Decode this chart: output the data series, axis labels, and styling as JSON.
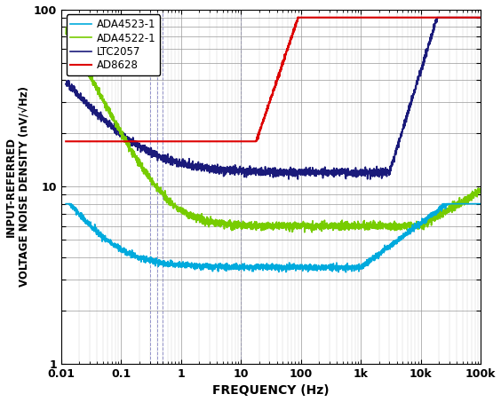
{
  "xlabel": "FREQUENCY (Hz)",
  "ylabel": "INPUT-REFERRED\nVOLTAGE NOISE DENSITY (nV/√Hz)",
  "xlim": [
    0.01,
    100000
  ],
  "ylim": [
    1,
    100
  ],
  "legend": [
    "ADA4523-1",
    "ADA4522-1",
    "LTC2057",
    "AD8628"
  ],
  "colors": {
    "ADA4523-1": "#00AADD",
    "ADA4522-1": "#77CC00",
    "LTC2057": "#1A1A7A",
    "AD8628": "#DD0000"
  },
  "background_color": "#FFFFFF",
  "vlines": [
    0.3,
    0.4,
    0.5,
    10.0
  ],
  "vline_color": "#3333AA"
}
